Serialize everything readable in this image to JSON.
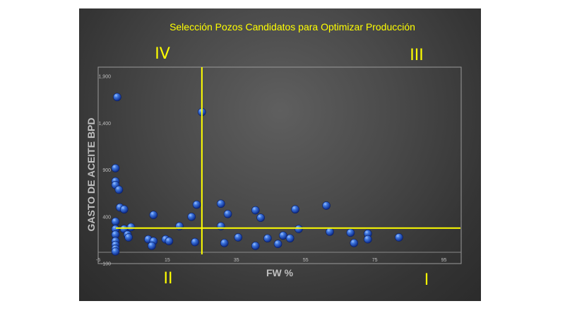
{
  "chart_data": {
    "type": "scatter",
    "title": "Selección Pozos Candidatos para Optimizar Producción",
    "xlabel": "FW %",
    "ylabel": "GASTO DE ACEITE BPD",
    "xlim": [
      -5,
      100
    ],
    "ylim": [
      -100,
      2000
    ],
    "x_ticks": [
      "-5",
      "15",
      "35",
      "55",
      "75",
      "95"
    ],
    "y_ticks": [
      "-100",
      "400",
      "900",
      "1,400",
      "1,900"
    ],
    "grid": false,
    "legend": "none",
    "colors": {
      "points": "#1f4fc9",
      "lines": "#ffff00",
      "quadrant_labels": "#ffff00"
    },
    "thresholds": {
      "x": 25,
      "y": 280
    },
    "quadrants": [
      {
        "label": "IV",
        "position": "top-left"
      },
      {
        "label": "III",
        "position": "top-right"
      },
      {
        "label": "II",
        "position": "bottom-left"
      },
      {
        "label": "I",
        "position": "bottom-right"
      }
    ],
    "points": [
      {
        "x": 0.5,
        "y": 1680
      },
      {
        "x": 25,
        "y": 1520
      },
      {
        "x": 0,
        "y": 920
      },
      {
        "x": 0,
        "y": 780
      },
      {
        "x": 0,
        "y": 740
      },
      {
        "x": 1,
        "y": 690
      },
      {
        "x": 1.3,
        "y": 500
      },
      {
        "x": 2.5,
        "y": 480
      },
      {
        "x": 11,
        "y": 420
      },
      {
        "x": 22,
        "y": 400
      },
      {
        "x": 23.5,
        "y": 530
      },
      {
        "x": 30.5,
        "y": 540
      },
      {
        "x": 32.5,
        "y": 430
      },
      {
        "x": 40.5,
        "y": 470
      },
      {
        "x": 42,
        "y": 390
      },
      {
        "x": 52,
        "y": 480
      },
      {
        "x": 61,
        "y": 520
      },
      {
        "x": 0,
        "y": 350
      },
      {
        "x": 0,
        "y": 270
      },
      {
        "x": 2.5,
        "y": 270
      },
      {
        "x": 4.5,
        "y": 290
      },
      {
        "x": 18.5,
        "y": 300
      },
      {
        "x": 30.5,
        "y": 300
      },
      {
        "x": 53,
        "y": 270
      },
      {
        "x": 0,
        "y": 210
      },
      {
        "x": 0,
        "y": 140
      },
      {
        "x": 0,
        "y": 100
      },
      {
        "x": 0,
        "y": 60
      },
      {
        "x": 0,
        "y": 30
      },
      {
        "x": 3.5,
        "y": 210
      },
      {
        "x": 3.8,
        "y": 180
      },
      {
        "x": 9.5,
        "y": 160
      },
      {
        "x": 11,
        "y": 140
      },
      {
        "x": 10.5,
        "y": 90
      },
      {
        "x": 14.5,
        "y": 160
      },
      {
        "x": 15.5,
        "y": 140
      },
      {
        "x": 23,
        "y": 130
      },
      {
        "x": 31.5,
        "y": 120
      },
      {
        "x": 35.5,
        "y": 180
      },
      {
        "x": 40.5,
        "y": 90
      },
      {
        "x": 44,
        "y": 170
      },
      {
        "x": 47,
        "y": 110
      },
      {
        "x": 48.5,
        "y": 200
      },
      {
        "x": 50.5,
        "y": 170
      },
      {
        "x": 62,
        "y": 240
      },
      {
        "x": 68,
        "y": 230
      },
      {
        "x": 69,
        "y": 120
      },
      {
        "x": 73,
        "y": 220
      },
      {
        "x": 73,
        "y": 160
      },
      {
        "x": 82,
        "y": 180
      }
    ]
  }
}
